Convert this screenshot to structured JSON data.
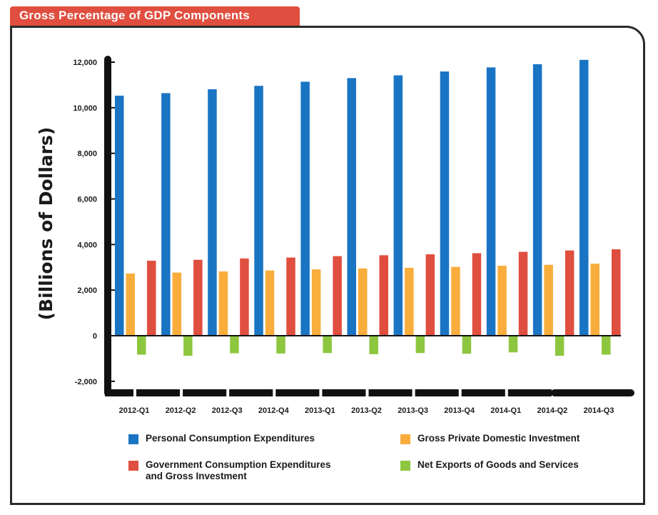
{
  "header": {
    "title": "Gross Percentage of GDP Components"
  },
  "colors": {
    "title_bg": "#e04e3f",
    "frame": "#2b2b2b",
    "axis": "#111111"
  },
  "chart_data": {
    "type": "bar",
    "title": "Gross Percentage of GDP Components",
    "ylabel": "(Billions of Dollars)",
    "xlabel": "",
    "ylim": [
      -2000,
      12000
    ],
    "yticks": [
      12000,
      10000,
      8000,
      6000,
      4000,
      2000,
      0,
      -2000
    ],
    "ytick_labels": [
      "12,000",
      "10,000",
      "8,000",
      "6,000",
      "4,000",
      "2,000",
      "0",
      "-2,000"
    ],
    "grid": false,
    "legend_position": "bottom",
    "categories": [
      "2012-Q1",
      "2012-Q2",
      "2012-Q3",
      "2012-Q4",
      "2013-Q1",
      "2013-Q2",
      "2013-Q3",
      "2013-Q4",
      "2014-Q1",
      "2014-Q2",
      "2014-Q3"
    ],
    "series": [
      {
        "name": "Personal Consumption Expenditures",
        "color": "#1a74c4",
        "values": [
          10530,
          10640,
          10810,
          10960,
          11140,
          11300,
          11420,
          11590,
          11770,
          11910,
          12100
        ]
      },
      {
        "name": "Gross Private Domestic Investment",
        "color": "#f9ad3c",
        "values": [
          2730,
          2770,
          2820,
          2860,
          2910,
          2950,
          2980,
          3020,
          3070,
          3110,
          3160
        ]
      },
      {
        "name": "Government Consumption Expenditures and Gross Investment",
        "color": "#e04e3f",
        "values": [
          3290,
          3330,
          3390,
          3430,
          3490,
          3530,
          3570,
          3620,
          3680,
          3740,
          3790
        ]
      },
      {
        "name": "Net Exports of Goods and Services",
        "color": "#8dc63f",
        "values": [
          -830,
          -880,
          -770,
          -780,
          -760,
          -810,
          -760,
          -790,
          -730,
          -880,
          -830
        ]
      }
    ],
    "legend": [
      {
        "label_lines": [
          "Personal Consumption Expenditures"
        ]
      },
      {
        "label_lines": [
          "Gross Private Domestic Investment"
        ]
      },
      {
        "label_lines": [
          "Government Consumption Expenditures",
          "and Gross Investment"
        ]
      },
      {
        "label_lines": [
          "Net Exports of Goods and Services"
        ]
      }
    ]
  }
}
